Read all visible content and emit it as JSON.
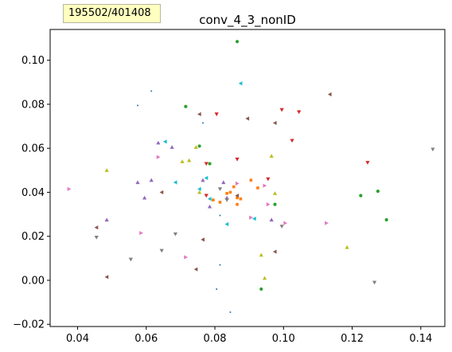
{
  "overlay_label": "195502/401408",
  "colors": {
    "palette": [
      "#1f77b4",
      "#ff7f0e",
      "#2ca02c",
      "#d62728",
      "#9467bd",
      "#8c564b",
      "#e377c2",
      "#7f7f7f",
      "#bcbd22",
      "#17becf"
    ]
  },
  "chart_data": {
    "type": "scatter",
    "title": "conv_4_3_nonID",
    "xlabel": "",
    "ylabel": "",
    "xlim": [
      0.032,
      0.147
    ],
    "ylim": [
      -0.021,
      0.114
    ],
    "x_ticks": [
      "0.04",
      "0.06",
      "0.08",
      "0.10",
      "0.12",
      "0.14"
    ],
    "x_tick_values": [
      0.04,
      0.06,
      0.08,
      0.1,
      0.12,
      0.14
    ],
    "y_ticks": [
      "−0.02",
      "0.00",
      "0.02",
      "0.04",
      "0.06",
      "0.08",
      "0.10"
    ],
    "y_tick_values": [
      -0.02,
      0.0,
      0.02,
      0.04,
      0.06,
      0.08,
      0.1
    ],
    "grid": false,
    "legend": "none",
    "points": [
      {
        "x": 0.0835,
        "y": 0.0395,
        "c": 1,
        "m": "s"
      },
      {
        "x": 0.0855,
        "y": 0.0425,
        "c": 1,
        "m": "s"
      },
      {
        "x": 0.0865,
        "y": 0.0375,
        "c": 1,
        "m": "s"
      },
      {
        "x": 0.0815,
        "y": 0.0355,
        "c": 1,
        "m": "s"
      },
      {
        "x": 0.0875,
        "y": 0.037,
        "c": 1,
        "m": "s"
      },
      {
        "x": 0.0845,
        "y": 0.04,
        "c": 1,
        "m": "s"
      },
      {
        "x": 0.0905,
        "y": 0.0455,
        "c": 1,
        "m": "s"
      },
      {
        "x": 0.0865,
        "y": 0.0345,
        "c": 1,
        "m": "s"
      },
      {
        "x": 0.0795,
        "y": 0.0365,
        "c": 1,
        "m": "s"
      },
      {
        "x": 0.0925,
        "y": 0.042,
        "c": 1,
        "m": "s"
      },
      {
        "x": 0.0865,
        "y": 0.1085,
        "c": 2,
        "m": "o"
      },
      {
        "x": 0.0715,
        "y": 0.079,
        "c": 2,
        "m": "o"
      },
      {
        "x": 0.0755,
        "y": 0.061,
        "c": 2,
        "m": "o"
      },
      {
        "x": 0.0785,
        "y": 0.053,
        "c": 2,
        "m": "o"
      },
      {
        "x": 0.1225,
        "y": 0.0385,
        "c": 2,
        "m": "o"
      },
      {
        "x": 0.1275,
        "y": 0.0405,
        "c": 2,
        "m": "o"
      },
      {
        "x": 0.13,
        "y": 0.0275,
        "c": 2,
        "m": "o"
      },
      {
        "x": 0.0975,
        "y": 0.0345,
        "c": 2,
        "m": "o"
      },
      {
        "x": 0.0935,
        "y": -0.004,
        "c": 2,
        "m": "o"
      },
      {
        "x": 0.0805,
        "y": 0.0755,
        "c": 3,
        "m": "v"
      },
      {
        "x": 0.0995,
        "y": 0.0775,
        "c": 3,
        "m": "v"
      },
      {
        "x": 0.1045,
        "y": 0.0765,
        "c": 3,
        "m": "v"
      },
      {
        "x": 0.1025,
        "y": 0.0635,
        "c": 3,
        "m": "v"
      },
      {
        "x": 0.0865,
        "y": 0.055,
        "c": 3,
        "m": "v"
      },
      {
        "x": 0.0775,
        "y": 0.053,
        "c": 3,
        "m": "v"
      },
      {
        "x": 0.1245,
        "y": 0.0535,
        "c": 3,
        "m": "v"
      },
      {
        "x": 0.0955,
        "y": 0.046,
        "c": 3,
        "m": "v"
      },
      {
        "x": 0.0775,
        "y": 0.0385,
        "c": 3,
        "m": "v"
      },
      {
        "x": 0.0765,
        "y": 0.0455,
        "c": 4,
        "m": "^"
      },
      {
        "x": 0.0825,
        "y": 0.0445,
        "c": 4,
        "m": "^"
      },
      {
        "x": 0.0675,
        "y": 0.0605,
        "c": 4,
        "m": "^"
      },
      {
        "x": 0.0635,
        "y": 0.0625,
        "c": 4,
        "m": "^"
      },
      {
        "x": 0.0575,
        "y": 0.0445,
        "c": 4,
        "m": "^"
      },
      {
        "x": 0.0615,
        "y": 0.0455,
        "c": 4,
        "m": "^"
      },
      {
        "x": 0.0595,
        "y": 0.0375,
        "c": 4,
        "m": "^"
      },
      {
        "x": 0.0485,
        "y": 0.0275,
        "c": 4,
        "m": "^"
      },
      {
        "x": 0.0835,
        "y": 0.0375,
        "c": 4,
        "m": "^"
      },
      {
        "x": 0.0965,
        "y": 0.0275,
        "c": 4,
        "m": "^"
      },
      {
        "x": 0.0785,
        "y": 0.0335,
        "c": 4,
        "m": "^"
      },
      {
        "x": 0.0895,
        "y": 0.0735,
        "c": 5,
        "m": "<"
      },
      {
        "x": 0.0975,
        "y": 0.0715,
        "c": 5,
        "m": "<"
      },
      {
        "x": 0.0755,
        "y": 0.0755,
        "c": 5,
        "m": "<"
      },
      {
        "x": 0.1135,
        "y": 0.0845,
        "c": 5,
        "m": "<"
      },
      {
        "x": 0.0645,
        "y": 0.04,
        "c": 5,
        "m": "<"
      },
      {
        "x": 0.0455,
        "y": 0.024,
        "c": 5,
        "m": "<"
      },
      {
        "x": 0.0765,
        "y": 0.0185,
        "c": 5,
        "m": "<"
      },
      {
        "x": 0.0975,
        "y": 0.013,
        "c": 5,
        "m": "<"
      },
      {
        "x": 0.0745,
        "y": 0.005,
        "c": 5,
        "m": "<"
      },
      {
        "x": 0.0485,
        "y": 0.0015,
        "c": 5,
        "m": "<"
      },
      {
        "x": 0.0865,
        "y": 0.0385,
        "c": 5,
        "m": "<"
      },
      {
        "x": 0.0375,
        "y": 0.0415,
        "c": 6,
        "m": ">"
      },
      {
        "x": 0.0635,
        "y": 0.056,
        "c": 6,
        "m": ">"
      },
      {
        "x": 0.0585,
        "y": 0.0215,
        "c": 6,
        "m": ">"
      },
      {
        "x": 0.0945,
        "y": 0.043,
        "c": 6,
        "m": ">"
      },
      {
        "x": 0.1125,
        "y": 0.026,
        "c": 6,
        "m": ">"
      },
      {
        "x": 0.1005,
        "y": 0.026,
        "c": 6,
        "m": ">"
      },
      {
        "x": 0.0955,
        "y": 0.0345,
        "c": 6,
        "m": ">"
      },
      {
        "x": 0.0715,
        "y": 0.0105,
        "c": 6,
        "m": ">"
      },
      {
        "x": 0.0865,
        "y": 0.044,
        "c": 6,
        "m": ">"
      },
      {
        "x": 0.0905,
        "y": 0.0285,
        "c": 6,
        "m": ">"
      },
      {
        "x": 0.1435,
        "y": 0.0595,
        "c": 7,
        "m": "v"
      },
      {
        "x": 0.0455,
        "y": 0.0195,
        "c": 7,
        "m": "v"
      },
      {
        "x": 0.0555,
        "y": 0.0095,
        "c": 7,
        "m": "v"
      },
      {
        "x": 0.0645,
        "y": 0.0135,
        "c": 7,
        "m": "v"
      },
      {
        "x": 0.0685,
        "y": 0.021,
        "c": 7,
        "m": "v"
      },
      {
        "x": 0.1265,
        "y": -0.001,
        "c": 7,
        "m": "v"
      },
      {
        "x": 0.0995,
        "y": 0.0245,
        "c": 7,
        "m": "v"
      },
      {
        "x": 0.0815,
        "y": 0.0415,
        "c": 7,
        "m": "v"
      },
      {
        "x": 0.0835,
        "y": 0.0365,
        "c": 7,
        "m": "v"
      },
      {
        "x": 0.0485,
        "y": 0.05,
        "c": 8,
        "m": "^"
      },
      {
        "x": 0.0705,
        "y": 0.054,
        "c": 8,
        "m": "^"
      },
      {
        "x": 0.0725,
        "y": 0.0545,
        "c": 8,
        "m": "^"
      },
      {
        "x": 0.0745,
        "y": 0.0605,
        "c": 8,
        "m": "^"
      },
      {
        "x": 0.0965,
        "y": 0.0565,
        "c": 8,
        "m": "^"
      },
      {
        "x": 0.0975,
        "y": 0.0395,
        "c": 8,
        "m": "^"
      },
      {
        "x": 0.0755,
        "y": 0.04,
        "c": 8,
        "m": "^"
      },
      {
        "x": 0.1185,
        "y": 0.015,
        "c": 8,
        "m": "^"
      },
      {
        "x": 0.0935,
        "y": 0.0115,
        "c": 8,
        "m": "^"
      },
      {
        "x": 0.0945,
        "y": 0.001,
        "c": 8,
        "m": "^"
      },
      {
        "x": 0.0875,
        "y": 0.0895,
        "c": 9,
        "m": "<"
      },
      {
        "x": 0.0655,
        "y": 0.063,
        "c": 9,
        "m": "<"
      },
      {
        "x": 0.0775,
        "y": 0.0465,
        "c": 9,
        "m": "<"
      },
      {
        "x": 0.0685,
        "y": 0.0445,
        "c": 9,
        "m": "<"
      },
      {
        "x": 0.0755,
        "y": 0.0415,
        "c": 9,
        "m": "<"
      },
      {
        "x": 0.0785,
        "y": 0.037,
        "c": 9,
        "m": "<"
      },
      {
        "x": 0.0835,
        "y": 0.0255,
        "c": 9,
        "m": "<"
      },
      {
        "x": 0.0915,
        "y": 0.028,
        "c": 9,
        "m": "<"
      },
      {
        "x": 0.0615,
        "y": 0.086,
        "c": 0,
        "m": "."
      },
      {
        "x": 0.0575,
        "y": 0.0795,
        "c": 0,
        "m": "."
      },
      {
        "x": 0.0765,
        "y": 0.0715,
        "c": 0,
        "m": "."
      },
      {
        "x": 0.0815,
        "y": 0.0295,
        "c": 0,
        "m": "."
      },
      {
        "x": 0.0815,
        "y": 0.007,
        "c": 0,
        "m": "."
      },
      {
        "x": 0.0805,
        "y": -0.004,
        "c": 0,
        "m": "."
      },
      {
        "x": 0.0845,
        "y": -0.0145,
        "c": 0,
        "m": "."
      }
    ]
  }
}
